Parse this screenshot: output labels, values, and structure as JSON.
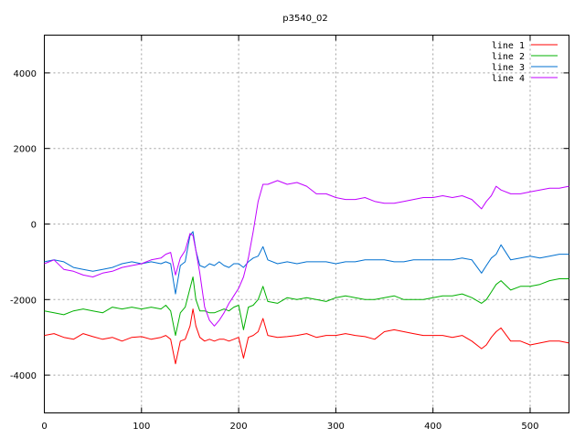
{
  "chart_data": {
    "type": "line",
    "title": "p3540_02",
    "xlabel": "",
    "ylabel": "",
    "xlim": [
      0,
      540
    ],
    "ylim": [
      -5000,
      5000
    ],
    "xticks": [
      0,
      100,
      200,
      300,
      400,
      500
    ],
    "yticks": [
      -4000,
      -2000,
      0,
      2000,
      4000
    ],
    "grid": true,
    "legend_position": "top-right",
    "x": [
      0,
      10,
      20,
      30,
      40,
      50,
      60,
      70,
      80,
      90,
      100,
      110,
      120,
      125,
      130,
      135,
      140,
      145,
      150,
      153,
      156,
      160,
      165,
      170,
      175,
      180,
      185,
      190,
      195,
      200,
      205,
      210,
      215,
      220,
      225,
      230,
      240,
      250,
      260,
      270,
      280,
      290,
      300,
      310,
      320,
      330,
      340,
      350,
      360,
      370,
      380,
      390,
      400,
      410,
      420,
      430,
      440,
      450,
      455,
      460,
      465,
      470,
      480,
      490,
      500,
      510,
      520,
      530,
      540
    ],
    "series": [
      {
        "name": "line 1",
        "color": "#ff0000",
        "values": [
          -2950,
          -2900,
          -3000,
          -3050,
          -2900,
          -2980,
          -3050,
          -3000,
          -3100,
          -3000,
          -2980,
          -3050,
          -3000,
          -2950,
          -3050,
          -3700,
          -3100,
          -3050,
          -2700,
          -2250,
          -2700,
          -3000,
          -3100,
          -3050,
          -3100,
          -3050,
          -3050,
          -3100,
          -3050,
          -3000,
          -3550,
          -3000,
          -2950,
          -2850,
          -2500,
          -2950,
          -3000,
          -2980,
          -2950,
          -2900,
          -3000,
          -2950,
          -2950,
          -2900,
          -2950,
          -2980,
          -3050,
          -2850,
          -2800,
          -2850,
          -2900,
          -2950,
          -2950,
          -2950,
          -3000,
          -2950,
          -3100,
          -3300,
          -3200,
          -3000,
          -2850,
          -2750,
          -3100,
          -3100,
          -3200,
          -3150,
          -3100,
          -3100,
          -3150
        ]
      },
      {
        "name": "line 2",
        "color": "#00b000",
        "values": [
          -2300,
          -2350,
          -2400,
          -2300,
          -2250,
          -2300,
          -2350,
          -2200,
          -2250,
          -2200,
          -2250,
          -2200,
          -2250,
          -2150,
          -2300,
          -2950,
          -2350,
          -2200,
          -1700,
          -1400,
          -2000,
          -2300,
          -2300,
          -2350,
          -2350,
          -2300,
          -2250,
          -2300,
          -2200,
          -2150,
          -2800,
          -2200,
          -2150,
          -2000,
          -1650,
          -2050,
          -2100,
          -1950,
          -2000,
          -1950,
          -2000,
          -2050,
          -1950,
          -1900,
          -1950,
          -2000,
          -2000,
          -1950,
          -1900,
          -2000,
          -2000,
          -2000,
          -1950,
          -1900,
          -1900,
          -1850,
          -1950,
          -2100,
          -2000,
          -1800,
          -1600,
          -1500,
          -1750,
          -1650,
          -1650,
          -1600,
          -1500,
          -1450,
          -1450
        ]
      },
      {
        "name": "line 3",
        "color": "#0070d0",
        "values": [
          -1000,
          -950,
          -1000,
          -1150,
          -1200,
          -1250,
          -1200,
          -1150,
          -1050,
          -1000,
          -1050,
          -1000,
          -1050,
          -1000,
          -1050,
          -1850,
          -1100,
          -1000,
          -300,
          -200,
          -700,
          -1100,
          -1150,
          -1050,
          -1100,
          -1000,
          -1100,
          -1150,
          -1050,
          -1050,
          -1150,
          -1000,
          -900,
          -850,
          -600,
          -950,
          -1050,
          -1000,
          -1050,
          -1000,
          -1000,
          -1000,
          -1050,
          -1000,
          -1000,
          -950,
          -950,
          -950,
          -1000,
          -1000,
          -950,
          -950,
          -950,
          -950,
          -950,
          -900,
          -950,
          -1300,
          -1100,
          -900,
          -800,
          -550,
          -950,
          -900,
          -850,
          -900,
          -850,
          -800,
          -800
        ]
      },
      {
        "name": "line 4",
        "color": "#c000ff",
        "values": [
          -1050,
          -950,
          -1200,
          -1250,
          -1350,
          -1400,
          -1300,
          -1250,
          -1150,
          -1100,
          -1050,
          -950,
          -900,
          -800,
          -750,
          -1350,
          -900,
          -700,
          -250,
          -300,
          -700,
          -1300,
          -2200,
          -2550,
          -2700,
          -2550,
          -2350,
          -2100,
          -1900,
          -1700,
          -1400,
          -900,
          -200,
          600,
          1050,
          1050,
          1150,
          1050,
          1100,
          1000,
          800,
          800,
          700,
          650,
          650,
          700,
          600,
          550,
          550,
          600,
          650,
          700,
          700,
          750,
          700,
          750,
          650,
          400,
          600,
          750,
          1000,
          900,
          800,
          800,
          850,
          900,
          950,
          950,
          1000
        ]
      }
    ]
  }
}
